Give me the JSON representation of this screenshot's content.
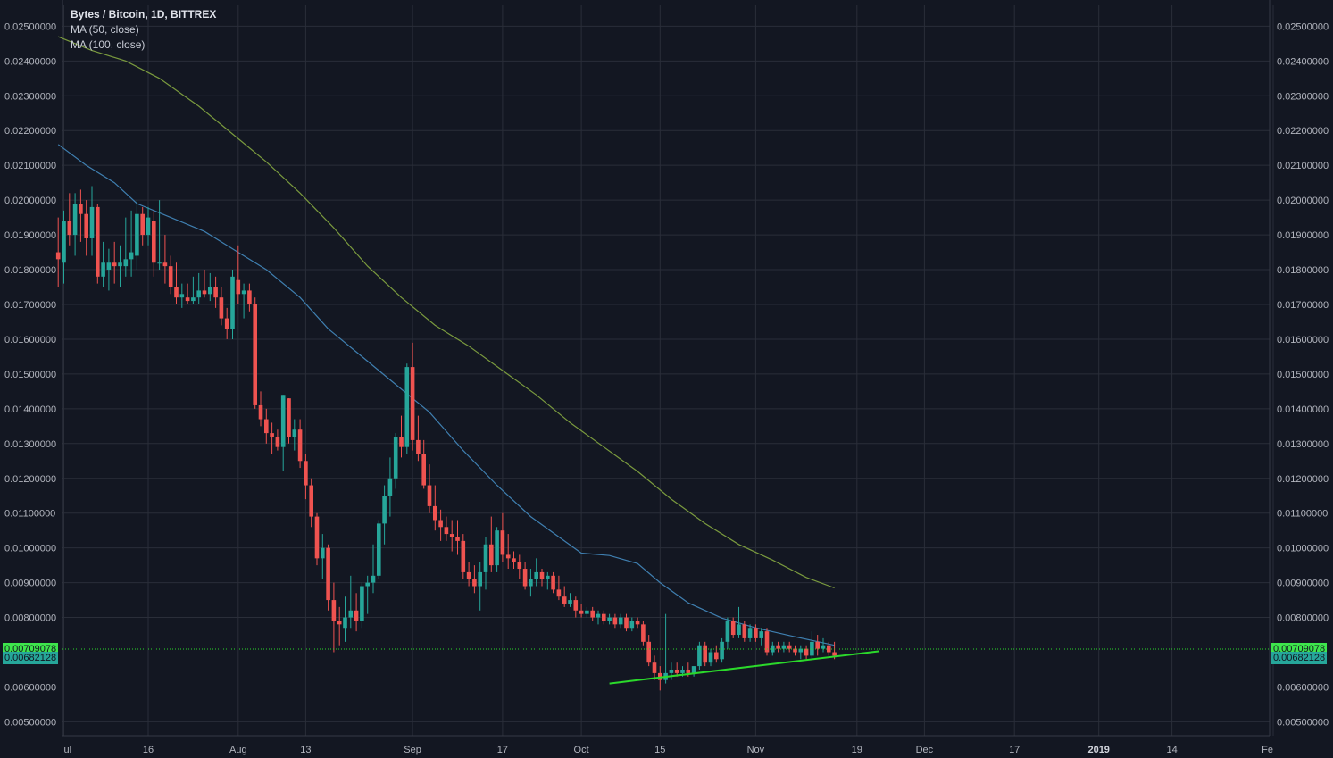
{
  "legend": {
    "title": "Bytes / Bitcoin, 1D, BITTREX",
    "ma50": "MA (50, close)",
    "ma100": "MA (100, close)"
  },
  "price_tags": {
    "last": "0.00709078",
    "close": "0.00682128",
    "last_color": "#3ee64c",
    "close_color": "#26a69a"
  },
  "colors": {
    "background": "#131722",
    "grid": "#2a2e39",
    "up": "#26a69a",
    "down": "#ef5350",
    "ma50": "#3f7fb0",
    "ma100": "#7a9a3e",
    "trendline": "#2bd92b"
  },
  "chart_data": {
    "type": "candlestick",
    "title": "Bytes / Bitcoin, 1D, BITTREX",
    "y_ticks": [
      "0.02500000",
      "0.02400000",
      "0.02300000",
      "0.02200000",
      "0.02100000",
      "0.02000000",
      "0.01900000",
      "0.01800000",
      "0.01700000",
      "0.01600000",
      "0.01500000",
      "0.01400000",
      "0.01300000",
      "0.01200000",
      "0.01100000",
      "0.01000000",
      "0.00900000",
      "0.00800000",
      "0.00600000",
      "0.00500000"
    ],
    "ylim": [
      0.0046,
      0.0256
    ],
    "x_ticks": [
      {
        "label": "ul",
        "date": "2018-07-01"
      },
      {
        "label": "16",
        "date": "2018-07-16"
      },
      {
        "label": "Aug",
        "date": "2018-08-01"
      },
      {
        "label": "13",
        "date": "2018-08-13"
      },
      {
        "label": "Sep",
        "date": "2018-09-01"
      },
      {
        "label": "17",
        "date": "2018-09-17"
      },
      {
        "label": "Oct",
        "date": "2018-10-01"
      },
      {
        "label": "15",
        "date": "2018-10-15"
      },
      {
        "label": "Nov",
        "date": "2018-11-01"
      },
      {
        "label": "19",
        "date": "2018-11-19"
      },
      {
        "label": "Dec",
        "date": "2018-12-01"
      },
      {
        "label": "17",
        "date": "2018-12-17"
      },
      {
        "label": "2019",
        "date": "2019-01-01"
      },
      {
        "label": "14",
        "date": "2019-01-14"
      },
      {
        "label": "Fe",
        "date": "2019-02-01"
      }
    ],
    "ohlc": [
      [
        "2018-06-30",
        0.0185,
        0.0195,
        0.0175,
        0.0183
      ],
      [
        "2018-07-01",
        0.0182,
        0.0197,
        0.0176,
        0.0194
      ],
      [
        "2018-07-02",
        0.0194,
        0.0202,
        0.0187,
        0.019
      ],
      [
        "2018-07-03",
        0.019,
        0.0202,
        0.0184,
        0.0199
      ],
      [
        "2018-07-04",
        0.0199,
        0.0203,
        0.0188,
        0.0196
      ],
      [
        "2018-07-05",
        0.0196,
        0.02,
        0.0184,
        0.0189
      ],
      [
        "2018-07-06",
        0.0189,
        0.0204,
        0.0184,
        0.0198
      ],
      [
        "2018-07-07",
        0.0198,
        0.0199,
        0.0176,
        0.0178
      ],
      [
        "2018-07-08",
        0.0178,
        0.0188,
        0.0175,
        0.0182
      ],
      [
        "2018-07-09",
        0.018,
        0.0186,
        0.0174,
        0.0182
      ],
      [
        "2018-07-10",
        0.0182,
        0.0188,
        0.0176,
        0.0181
      ],
      [
        "2018-07-11",
        0.0181,
        0.0187,
        0.0175,
        0.0182
      ],
      [
        "2018-07-12",
        0.0181,
        0.0195,
        0.0178,
        0.0183
      ],
      [
        "2018-07-13",
        0.0183,
        0.0197,
        0.0178,
        0.0185
      ],
      [
        "2018-07-14",
        0.0184,
        0.02,
        0.018,
        0.0196
      ],
      [
        "2018-07-15",
        0.0196,
        0.0198,
        0.0187,
        0.019
      ],
      [
        "2018-07-16",
        0.019,
        0.0198,
        0.0187,
        0.0195
      ],
      [
        "2018-07-17",
        0.0194,
        0.0197,
        0.0178,
        0.0182
      ],
      [
        "2018-07-18",
        0.0182,
        0.02,
        0.018,
        0.0182
      ],
      [
        "2018-07-19",
        0.0182,
        0.019,
        0.0176,
        0.0181
      ],
      [
        "2018-07-20",
        0.0181,
        0.0184,
        0.0173,
        0.0175
      ],
      [
        "2018-07-21",
        0.0175,
        0.0182,
        0.017,
        0.0172
      ],
      [
        "2018-07-22",
        0.0172,
        0.0176,
        0.0169,
        0.0173
      ],
      [
        "2018-07-23",
        0.0172,
        0.0176,
        0.017,
        0.0171
      ],
      [
        "2018-07-24",
        0.0171,
        0.0178,
        0.017,
        0.0172
      ],
      [
        "2018-07-25",
        0.0172,
        0.0179,
        0.017,
        0.0174
      ],
      [
        "2018-07-26",
        0.0174,
        0.018,
        0.0172,
        0.0173
      ],
      [
        "2018-07-27",
        0.0173,
        0.0179,
        0.0171,
        0.0175
      ],
      [
        "2018-07-28",
        0.0175,
        0.0178,
        0.0169,
        0.0172
      ],
      [
        "2018-07-29",
        0.0172,
        0.0175,
        0.0164,
        0.0166
      ],
      [
        "2018-07-30",
        0.0166,
        0.0169,
        0.016,
        0.0163
      ],
      [
        "2018-07-31",
        0.0163,
        0.018,
        0.016,
        0.0178
      ],
      [
        "2018-08-01",
        0.0177,
        0.0187,
        0.017,
        0.0173
      ],
      [
        "2018-08-02",
        0.0173,
        0.0176,
        0.0166,
        0.0174
      ],
      [
        "2018-08-03",
        0.0174,
        0.0176,
        0.0168,
        0.017
      ],
      [
        "2018-08-04",
        0.017,
        0.0172,
        0.014,
        0.0141
      ],
      [
        "2018-08-05",
        0.0141,
        0.0145,
        0.0135,
        0.0137
      ],
      [
        "2018-08-06",
        0.0137,
        0.014,
        0.013,
        0.0133
      ],
      [
        "2018-08-07",
        0.0133,
        0.0136,
        0.0127,
        0.0132
      ],
      [
        "2018-08-08",
        0.0132,
        0.0134,
        0.0128,
        0.0129
      ],
      [
        "2018-08-09",
        0.0129,
        0.0144,
        0.0122,
        0.0144
      ],
      [
        "2018-08-10",
        0.0143,
        0.0143,
        0.013,
        0.0132
      ],
      [
        "2018-08-11",
        0.0132,
        0.0137,
        0.0128,
        0.0134
      ],
      [
        "2018-08-12",
        0.0134,
        0.0137,
        0.0123,
        0.0125
      ],
      [
        "2018-08-13",
        0.0125,
        0.0127,
        0.0114,
        0.0118
      ],
      [
        "2018-08-14",
        0.0118,
        0.012,
        0.0106,
        0.0109
      ],
      [
        "2018-08-15",
        0.0109,
        0.011,
        0.0095,
        0.0097
      ],
      [
        "2018-08-16",
        0.0097,
        0.0104,
        0.0091,
        0.01
      ],
      [
        "2018-08-17",
        0.01,
        0.0101,
        0.0082,
        0.0085
      ],
      [
        "2018-08-18",
        0.0085,
        0.009,
        0.007,
        0.0079
      ],
      [
        "2018-08-19",
        0.0079,
        0.0083,
        0.0072,
        0.0078
      ],
      [
        "2018-08-20",
        0.0077,
        0.0086,
        0.0073,
        0.008
      ],
      [
        "2018-08-21",
        0.008,
        0.0092,
        0.0077,
        0.0082
      ],
      [
        "2018-08-22",
        0.0082,
        0.0087,
        0.0076,
        0.0079
      ],
      [
        "2018-08-23",
        0.0079,
        0.009,
        0.0077,
        0.0089
      ],
      [
        "2018-08-24",
        0.0089,
        0.0092,
        0.0081,
        0.009
      ],
      [
        "2018-08-25",
        0.009,
        0.0101,
        0.0087,
        0.0092
      ],
      [
        "2018-08-26",
        0.0092,
        0.0108,
        0.0091,
        0.0107
      ],
      [
        "2018-08-27",
        0.0107,
        0.0118,
        0.0101,
        0.0115
      ],
      [
        "2018-08-28",
        0.0115,
        0.0126,
        0.0109,
        0.012
      ],
      [
        "2018-08-29",
        0.012,
        0.0133,
        0.0117,
        0.0132
      ],
      [
        "2018-08-30",
        0.0132,
        0.0138,
        0.0126,
        0.0129
      ],
      [
        "2018-08-31",
        0.0129,
        0.0153,
        0.0127,
        0.0152
      ],
      [
        "2018-09-01",
        0.0152,
        0.0159,
        0.0128,
        0.0131
      ],
      [
        "2018-09-02",
        0.0131,
        0.0138,
        0.0125,
        0.0127
      ],
      [
        "2018-09-03",
        0.0127,
        0.0131,
        0.0117,
        0.0118
      ],
      [
        "2018-09-04",
        0.0118,
        0.0124,
        0.011,
        0.0112
      ],
      [
        "2018-09-05",
        0.0112,
        0.0118,
        0.0105,
        0.0108
      ],
      [
        "2018-09-06",
        0.0108,
        0.0111,
        0.0102,
        0.0106
      ],
      [
        "2018-09-07",
        0.0106,
        0.0109,
        0.0102,
        0.0104
      ],
      [
        "2018-09-08",
        0.0104,
        0.0108,
        0.0099,
        0.0103
      ],
      [
        "2018-09-09",
        0.0103,
        0.0108,
        0.0098,
        0.0102
      ],
      [
        "2018-09-10",
        0.0102,
        0.0104,
        0.0091,
        0.0093
      ],
      [
        "2018-09-11",
        0.0093,
        0.0096,
        0.0089,
        0.0091
      ],
      [
        "2018-09-12",
        0.0091,
        0.0095,
        0.0087,
        0.0089
      ],
      [
        "2018-09-13",
        0.0089,
        0.0096,
        0.0082,
        0.0093
      ],
      [
        "2018-09-14",
        0.0093,
        0.0103,
        0.0088,
        0.0101
      ],
      [
        "2018-09-15",
        0.0101,
        0.0109,
        0.0093,
        0.0095
      ],
      [
        "2018-09-16",
        0.0095,
        0.0106,
        0.0093,
        0.0105
      ],
      [
        "2018-09-17",
        0.0105,
        0.011,
        0.0096,
        0.0098
      ],
      [
        "2018-09-18",
        0.0098,
        0.0104,
        0.0094,
        0.0097
      ],
      [
        "2018-09-19",
        0.0097,
        0.0099,
        0.0094,
        0.0096
      ],
      [
        "2018-09-20",
        0.0096,
        0.0098,
        0.0091,
        0.0094
      ],
      [
        "2018-09-21",
        0.0094,
        0.0096,
        0.0088,
        0.0089
      ],
      [
        "2018-09-22",
        0.0089,
        0.0094,
        0.0086,
        0.0091
      ],
      [
        "2018-09-23",
        0.0091,
        0.0097,
        0.0089,
        0.0093
      ],
      [
        "2018-09-24",
        0.0093,
        0.0094,
        0.0089,
        0.0091
      ],
      [
        "2018-09-25",
        0.0091,
        0.0093,
        0.0088,
        0.0092
      ],
      [
        "2018-09-26",
        0.0092,
        0.0093,
        0.0087,
        0.0088
      ],
      [
        "2018-09-27",
        0.0088,
        0.0092,
        0.0085,
        0.0086
      ],
      [
        "2018-09-28",
        0.0086,
        0.0089,
        0.0083,
        0.0084
      ],
      [
        "2018-09-29",
        0.0084,
        0.0087,
        0.0083,
        0.0085
      ],
      [
        "2018-09-30",
        0.0085,
        0.0086,
        0.008,
        0.0082
      ],
      [
        "2018-10-01",
        0.0082,
        0.0084,
        0.008,
        0.0081
      ],
      [
        "2018-10-02",
        0.0081,
        0.0083,
        0.008,
        0.0082
      ],
      [
        "2018-10-03",
        0.0082,
        0.0083,
        0.0079,
        0.008
      ],
      [
        "2018-10-04",
        0.008,
        0.0082,
        0.0078,
        0.0081
      ],
      [
        "2018-10-05",
        0.0081,
        0.0082,
        0.0078,
        0.0079
      ],
      [
        "2018-10-06",
        0.0079,
        0.0081,
        0.0078,
        0.008
      ],
      [
        "2018-10-07",
        0.008,
        0.0081,
        0.0077,
        0.0078
      ],
      [
        "2018-10-08",
        0.0078,
        0.0081,
        0.0077,
        0.008
      ],
      [
        "2018-10-09",
        0.008,
        0.0081,
        0.0076,
        0.0077
      ],
      [
        "2018-10-10",
        0.0077,
        0.008,
        0.0076,
        0.0079
      ],
      [
        "2018-10-11",
        0.0079,
        0.008,
        0.0077,
        0.0078
      ],
      [
        "2018-10-12",
        0.0078,
        0.0079,
        0.0072,
        0.0073
      ],
      [
        "2018-10-13",
        0.0073,
        0.0075,
        0.0066,
        0.0067
      ],
      [
        "2018-10-14",
        0.0067,
        0.0069,
        0.0062,
        0.0064
      ],
      [
        "2018-10-15",
        0.0064,
        0.0066,
        0.0059,
        0.0062
      ],
      [
        "2018-10-16",
        0.0062,
        0.0081,
        0.0061,
        0.0064
      ],
      [
        "2018-10-17",
        0.0064,
        0.0067,
        0.0062,
        0.0065
      ],
      [
        "2018-10-18",
        0.0065,
        0.0067,
        0.0063,
        0.0064
      ],
      [
        "2018-10-19",
        0.0064,
        0.0066,
        0.0063,
        0.0065
      ],
      [
        "2018-10-20",
        0.0065,
        0.0067,
        0.0063,
        0.0064
      ],
      [
        "2018-10-21",
        0.0064,
        0.0066,
        0.0063,
        0.0066
      ],
      [
        "2018-10-22",
        0.0066,
        0.0073,
        0.0065,
        0.0072
      ],
      [
        "2018-10-23",
        0.0072,
        0.0073,
        0.0066,
        0.0067
      ],
      [
        "2018-10-24",
        0.0067,
        0.0071,
        0.0066,
        0.007
      ],
      [
        "2018-10-25",
        0.007,
        0.0072,
        0.0067,
        0.0068
      ],
      [
        "2018-10-26",
        0.0068,
        0.0074,
        0.0067,
        0.0073
      ],
      [
        "2018-10-27",
        0.0073,
        0.008,
        0.0071,
        0.0079
      ],
      [
        "2018-10-28",
        0.0079,
        0.008,
        0.0074,
        0.0075
      ],
      [
        "2018-10-29",
        0.0075,
        0.0083,
        0.0074,
        0.0078
      ],
      [
        "2018-10-30",
        0.0078,
        0.0079,
        0.0073,
        0.0074
      ],
      [
        "2018-10-31",
        0.0074,
        0.0078,
        0.0073,
        0.0077
      ],
      [
        "2018-11-01",
        0.0077,
        0.0078,
        0.0073,
        0.0074
      ],
      [
        "2018-11-02",
        0.0074,
        0.0077,
        0.0072,
        0.0076
      ],
      [
        "2018-11-03",
        0.0076,
        0.0077,
        0.0069,
        0.007
      ],
      [
        "2018-11-04",
        0.007,
        0.0073,
        0.0069,
        0.0072
      ],
      [
        "2018-11-05",
        0.0072,
        0.0073,
        0.007,
        0.0071
      ],
      [
        "2018-11-06",
        0.0071,
        0.0073,
        0.007,
        0.0072
      ],
      [
        "2018-11-07",
        0.0072,
        0.0073,
        0.007,
        0.0071
      ],
      [
        "2018-11-08",
        0.0071,
        0.0072,
        0.0069,
        0.007
      ],
      [
        "2018-11-09",
        0.007,
        0.0072,
        0.0068,
        0.0071
      ],
      [
        "2018-11-10",
        0.0071,
        0.0072,
        0.0068,
        0.0069
      ],
      [
        "2018-11-11",
        0.0069,
        0.0076,
        0.0068,
        0.0073
      ],
      [
        "2018-11-12",
        0.0073,
        0.0075,
        0.0069,
        0.0071
      ],
      [
        "2018-11-13",
        0.0071,
        0.0074,
        0.007,
        0.0072
      ],
      [
        "2018-11-14",
        0.0072,
        0.0073,
        0.0069,
        0.007
      ],
      [
        "2018-11-15",
        0.007,
        0.0073,
        0.0068,
        0.0069
      ]
    ],
    "ma50": [
      [
        "2018-06-30",
        0.0216
      ],
      [
        "2018-07-05",
        0.021
      ],
      [
        "2018-07-10",
        0.0205
      ],
      [
        "2018-07-14",
        0.0199
      ],
      [
        "2018-07-20",
        0.0195
      ],
      [
        "2018-07-26",
        0.0191
      ],
      [
        "2018-08-01",
        0.0185
      ],
      [
        "2018-08-06",
        0.018
      ],
      [
        "2018-08-12",
        0.0172
      ],
      [
        "2018-08-17",
        0.0163
      ],
      [
        "2018-08-23",
        0.0155
      ],
      [
        "2018-08-29",
        0.0147
      ],
      [
        "2018-09-04",
        0.0139
      ],
      [
        "2018-09-10",
        0.0128
      ],
      [
        "2018-09-16",
        0.0118
      ],
      [
        "2018-09-22",
        0.0109
      ],
      [
        "2018-09-28",
        0.0102
      ],
      [
        "2018-10-01",
        0.00985
      ],
      [
        "2018-10-06",
        0.00978
      ],
      [
        "2018-10-11",
        0.00955
      ],
      [
        "2018-10-15",
        0.009
      ],
      [
        "2018-10-20",
        0.00842
      ],
      [
        "2018-10-26",
        0.00798
      ],
      [
        "2018-11-01",
        0.0077
      ],
      [
        "2018-11-07",
        0.00748
      ],
      [
        "2018-11-15",
        0.0072
      ]
    ],
    "ma100": [
      [
        "2018-06-30",
        0.0247
      ],
      [
        "2018-07-06",
        0.0243
      ],
      [
        "2018-07-12",
        0.024
      ],
      [
        "2018-07-18",
        0.0235
      ],
      [
        "2018-07-25",
        0.0227
      ],
      [
        "2018-07-31",
        0.0219
      ],
      [
        "2018-08-06",
        0.0211
      ],
      [
        "2018-08-12",
        0.0202
      ],
      [
        "2018-08-18",
        0.0192
      ],
      [
        "2018-08-24",
        0.0181
      ],
      [
        "2018-08-30",
        0.0172
      ],
      [
        "2018-09-05",
        0.0164
      ],
      [
        "2018-09-11",
        0.0158
      ],
      [
        "2018-09-17",
        0.0151
      ],
      [
        "2018-09-23",
        0.0144
      ],
      [
        "2018-09-29",
        0.0136
      ],
      [
        "2018-10-05",
        0.0129
      ],
      [
        "2018-10-11",
        0.0122
      ],
      [
        "2018-10-17",
        0.0114
      ],
      [
        "2018-10-23",
        0.0107
      ],
      [
        "2018-10-29",
        0.0101
      ],
      [
        "2018-11-04",
        0.00965
      ],
      [
        "2018-11-10",
        0.00915
      ],
      [
        "2018-11-15",
        0.00885
      ]
    ],
    "trendline": [
      [
        "2018-10-06",
        0.0061
      ],
      [
        "2018-11-23",
        0.00703
      ]
    ],
    "last_price": 0.00709078,
    "close_price": 0.00682128
  }
}
